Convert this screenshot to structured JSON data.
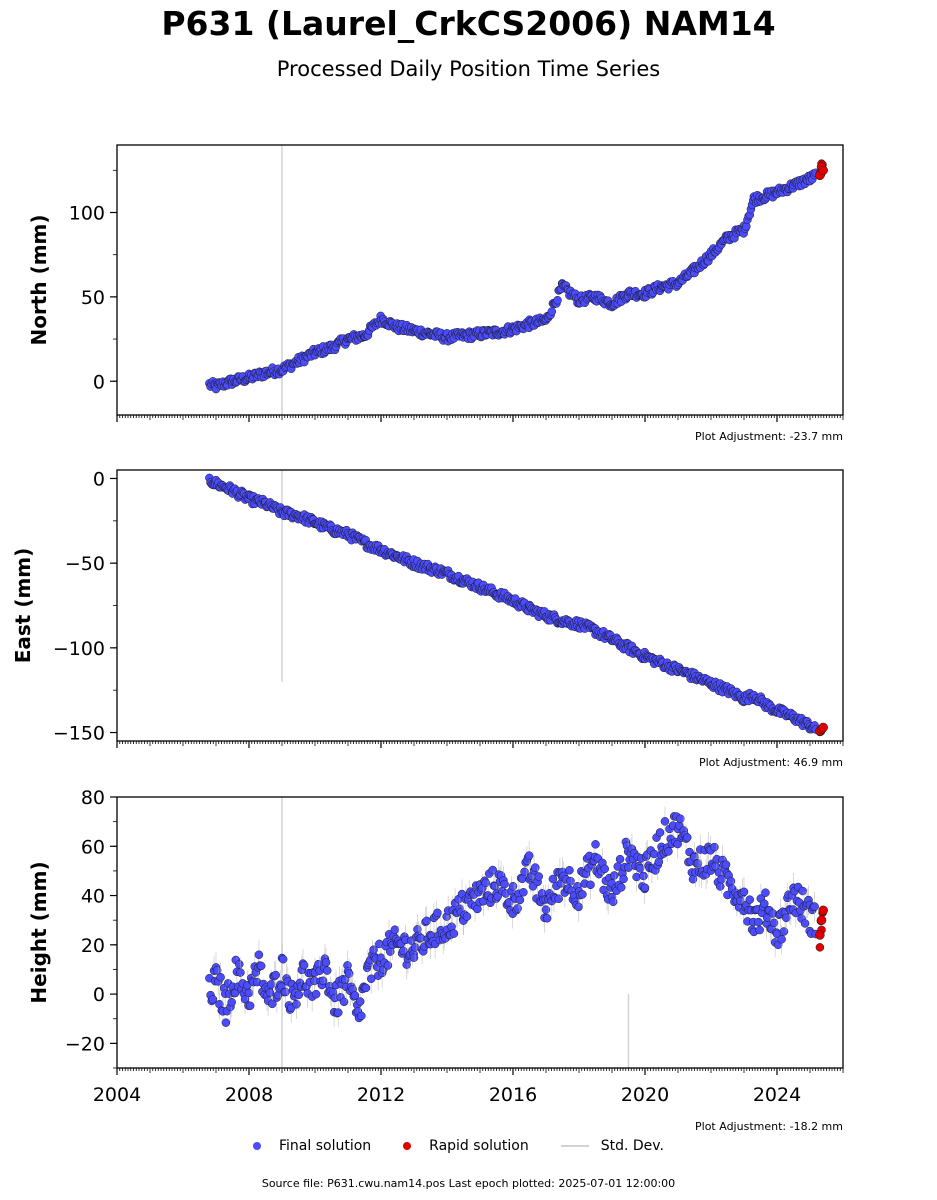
{
  "title": "P631 (Laurel_CrkCS2006) NAM14",
  "subtitle": "Processed Daily Position Time Series",
  "legend": {
    "final": "Final solution",
    "rapid": "Rapid solution",
    "std": "Std. Dev."
  },
  "footer": "Source file: P631.cwu.nam14.pos  Last epoch plotted: 2025-07-01 12:00:00",
  "colors": {
    "final": "#4b4bff",
    "rapid": "#e00000",
    "std": "#d3d3d3"
  },
  "chart_data": [
    {
      "type": "scatter",
      "ylabel": "North (mm)",
      "adjustment": "Plot Adjustment: -23.7 mm",
      "xlim": [
        2004,
        2026
      ],
      "ylim": [
        -20,
        140
      ],
      "yticks": [
        0,
        50,
        100
      ],
      "series": [
        {
          "name": "Final solution",
          "points": [
            [
              2006.8,
              -2
            ],
            [
              2007.0,
              -3
            ],
            [
              2007.5,
              0
            ],
            [
              2008.0,
              2
            ],
            [
              2008.5,
              5
            ],
            [
              2009.0,
              7
            ],
            [
              2009.5,
              12
            ],
            [
              2010.0,
              17
            ],
            [
              2010.5,
              20
            ],
            [
              2011.0,
              25
            ],
            [
              2011.5,
              27
            ],
            [
              2012.0,
              37
            ],
            [
              2012.5,
              32
            ],
            [
              2013.0,
              30
            ],
            [
              2013.5,
              28
            ],
            [
              2014.0,
              26
            ],
            [
              2014.5,
              27
            ],
            [
              2015.0,
              28
            ],
            [
              2015.5,
              29
            ],
            [
              2016.0,
              31
            ],
            [
              2016.5,
              34
            ],
            [
              2017.0,
              36
            ],
            [
              2017.5,
              56
            ],
            [
              2018.0,
              48
            ],
            [
              2018.5,
              50
            ],
            [
              2019.0,
              46
            ],
            [
              2019.5,
              52
            ],
            [
              2020.0,
              52
            ],
            [
              2020.5,
              56
            ],
            [
              2021.0,
              58
            ],
            [
              2021.5,
              66
            ],
            [
              2022.0,
              75
            ],
            [
              2022.5,
              85
            ],
            [
              2023.0,
              90
            ],
            [
              2023.3,
              108
            ],
            [
              2023.7,
              110
            ],
            [
              2024.0,
              112
            ],
            [
              2024.5,
              116
            ],
            [
              2025.0,
              120
            ],
            [
              2025.2,
              122
            ]
          ]
        },
        {
          "name": "Rapid solution",
          "points": [
            [
              2025.3,
              122
            ],
            [
              2025.35,
              127
            ],
            [
              2025.4,
              125
            ]
          ]
        }
      ]
    },
    {
      "type": "scatter",
      "ylabel": "East (mm)",
      "adjustment": "Plot Adjustment: 46.9 mm",
      "xlim": [
        2004,
        2026
      ],
      "ylim": [
        -155,
        5
      ],
      "yticks": [
        0,
        -50,
        -100,
        -150
      ],
      "series": [
        {
          "name": "Final solution",
          "points": [
            [
              2006.8,
              -1
            ],
            [
              2007.0,
              -3
            ],
            [
              2007.5,
              -7
            ],
            [
              2008.0,
              -12
            ],
            [
              2008.5,
              -15
            ],
            [
              2009.0,
              -20
            ],
            [
              2009.5,
              -22
            ],
            [
              2010.0,
              -26
            ],
            [
              2010.5,
              -30
            ],
            [
              2011.0,
              -33
            ],
            [
              2011.5,
              -38
            ],
            [
              2012.0,
              -42
            ],
            [
              2012.5,
              -46
            ],
            [
              2013.0,
              -50
            ],
            [
              2013.5,
              -53
            ],
            [
              2014.0,
              -56
            ],
            [
              2014.5,
              -60
            ],
            [
              2015.0,
              -64
            ],
            [
              2015.5,
              -68
            ],
            [
              2016.0,
              -72
            ],
            [
              2016.5,
              -77
            ],
            [
              2017.0,
              -81
            ],
            [
              2017.5,
              -84
            ],
            [
              2018.0,
              -86
            ],
            [
              2018.5,
              -90
            ],
            [
              2019.0,
              -95
            ],
            [
              2019.5,
              -100
            ],
            [
              2020.0,
              -105
            ],
            [
              2020.5,
              -109
            ],
            [
              2021.0,
              -113
            ],
            [
              2021.5,
              -117
            ],
            [
              2022.0,
              -121
            ],
            [
              2022.5,
              -125
            ],
            [
              2023.0,
              -130
            ],
            [
              2023.3,
              -128
            ],
            [
              2023.7,
              -134
            ],
            [
              2024.0,
              -137
            ],
            [
              2024.5,
              -141
            ],
            [
              2025.0,
              -146
            ],
            [
              2025.2,
              -149
            ]
          ]
        },
        {
          "name": "Rapid solution",
          "points": [
            [
              2025.3,
              -149
            ],
            [
              2025.35,
              -148
            ],
            [
              2025.4,
              -147
            ]
          ]
        }
      ]
    },
    {
      "type": "scatter",
      "ylabel": "Height (mm)",
      "adjustment": "Plot Adjustment: -18.2 mm",
      "xlim": [
        2004,
        2026
      ],
      "ylim": [
        -30,
        80
      ],
      "yticks": [
        -20,
        0,
        20,
        40,
        60,
        80
      ],
      "xticks": [
        2004,
        2008,
        2012,
        2016,
        2020,
        2024
      ],
      "series": [
        {
          "name": "Final solution",
          "points": [
            [
              2006.8,
              0
            ],
            [
              2007.0,
              5
            ],
            [
              2007.3,
              -5
            ],
            [
              2007.6,
              8
            ],
            [
              2008.0,
              0
            ],
            [
              2008.3,
              10
            ],
            [
              2008.6,
              -3
            ],
            [
              2009.0,
              10
            ],
            [
              2009.3,
              -2
            ],
            [
              2009.6,
              8
            ],
            [
              2010.0,
              2
            ],
            [
              2010.3,
              12
            ],
            [
              2010.6,
              -4
            ],
            [
              2011.0,
              5
            ],
            [
              2011.3,
              -10
            ],
            [
              2011.6,
              8
            ],
            [
              2012.0,
              15
            ],
            [
              2012.5,
              20
            ],
            [
              2013.0,
              18
            ],
            [
              2013.5,
              25
            ],
            [
              2014.0,
              28
            ],
            [
              2014.5,
              35
            ],
            [
              2015.0,
              40
            ],
            [
              2015.5,
              45
            ],
            [
              2016.0,
              38
            ],
            [
              2016.5,
              50
            ],
            [
              2017.0,
              35
            ],
            [
              2017.5,
              48
            ],
            [
              2018.0,
              42
            ],
            [
              2018.5,
              55
            ],
            [
              2019.0,
              40
            ],
            [
              2019.5,
              58
            ],
            [
              2020.0,
              48
            ],
            [
              2020.5,
              62
            ],
            [
              2021.0,
              68
            ],
            [
              2021.5,
              52
            ],
            [
              2022.0,
              55
            ],
            [
              2022.5,
              45
            ],
            [
              2023.0,
              40
            ],
            [
              2023.3,
              30
            ],
            [
              2023.7,
              35
            ],
            [
              2024.0,
              25
            ],
            [
              2024.5,
              40
            ],
            [
              2025.0,
              32
            ],
            [
              2025.2,
              28
            ]
          ]
        },
        {
          "name": "Rapid solution",
          "points": [
            [
              2025.3,
              24
            ],
            [
              2025.35,
              30
            ],
            [
              2025.4,
              34
            ]
          ]
        }
      ]
    }
  ]
}
